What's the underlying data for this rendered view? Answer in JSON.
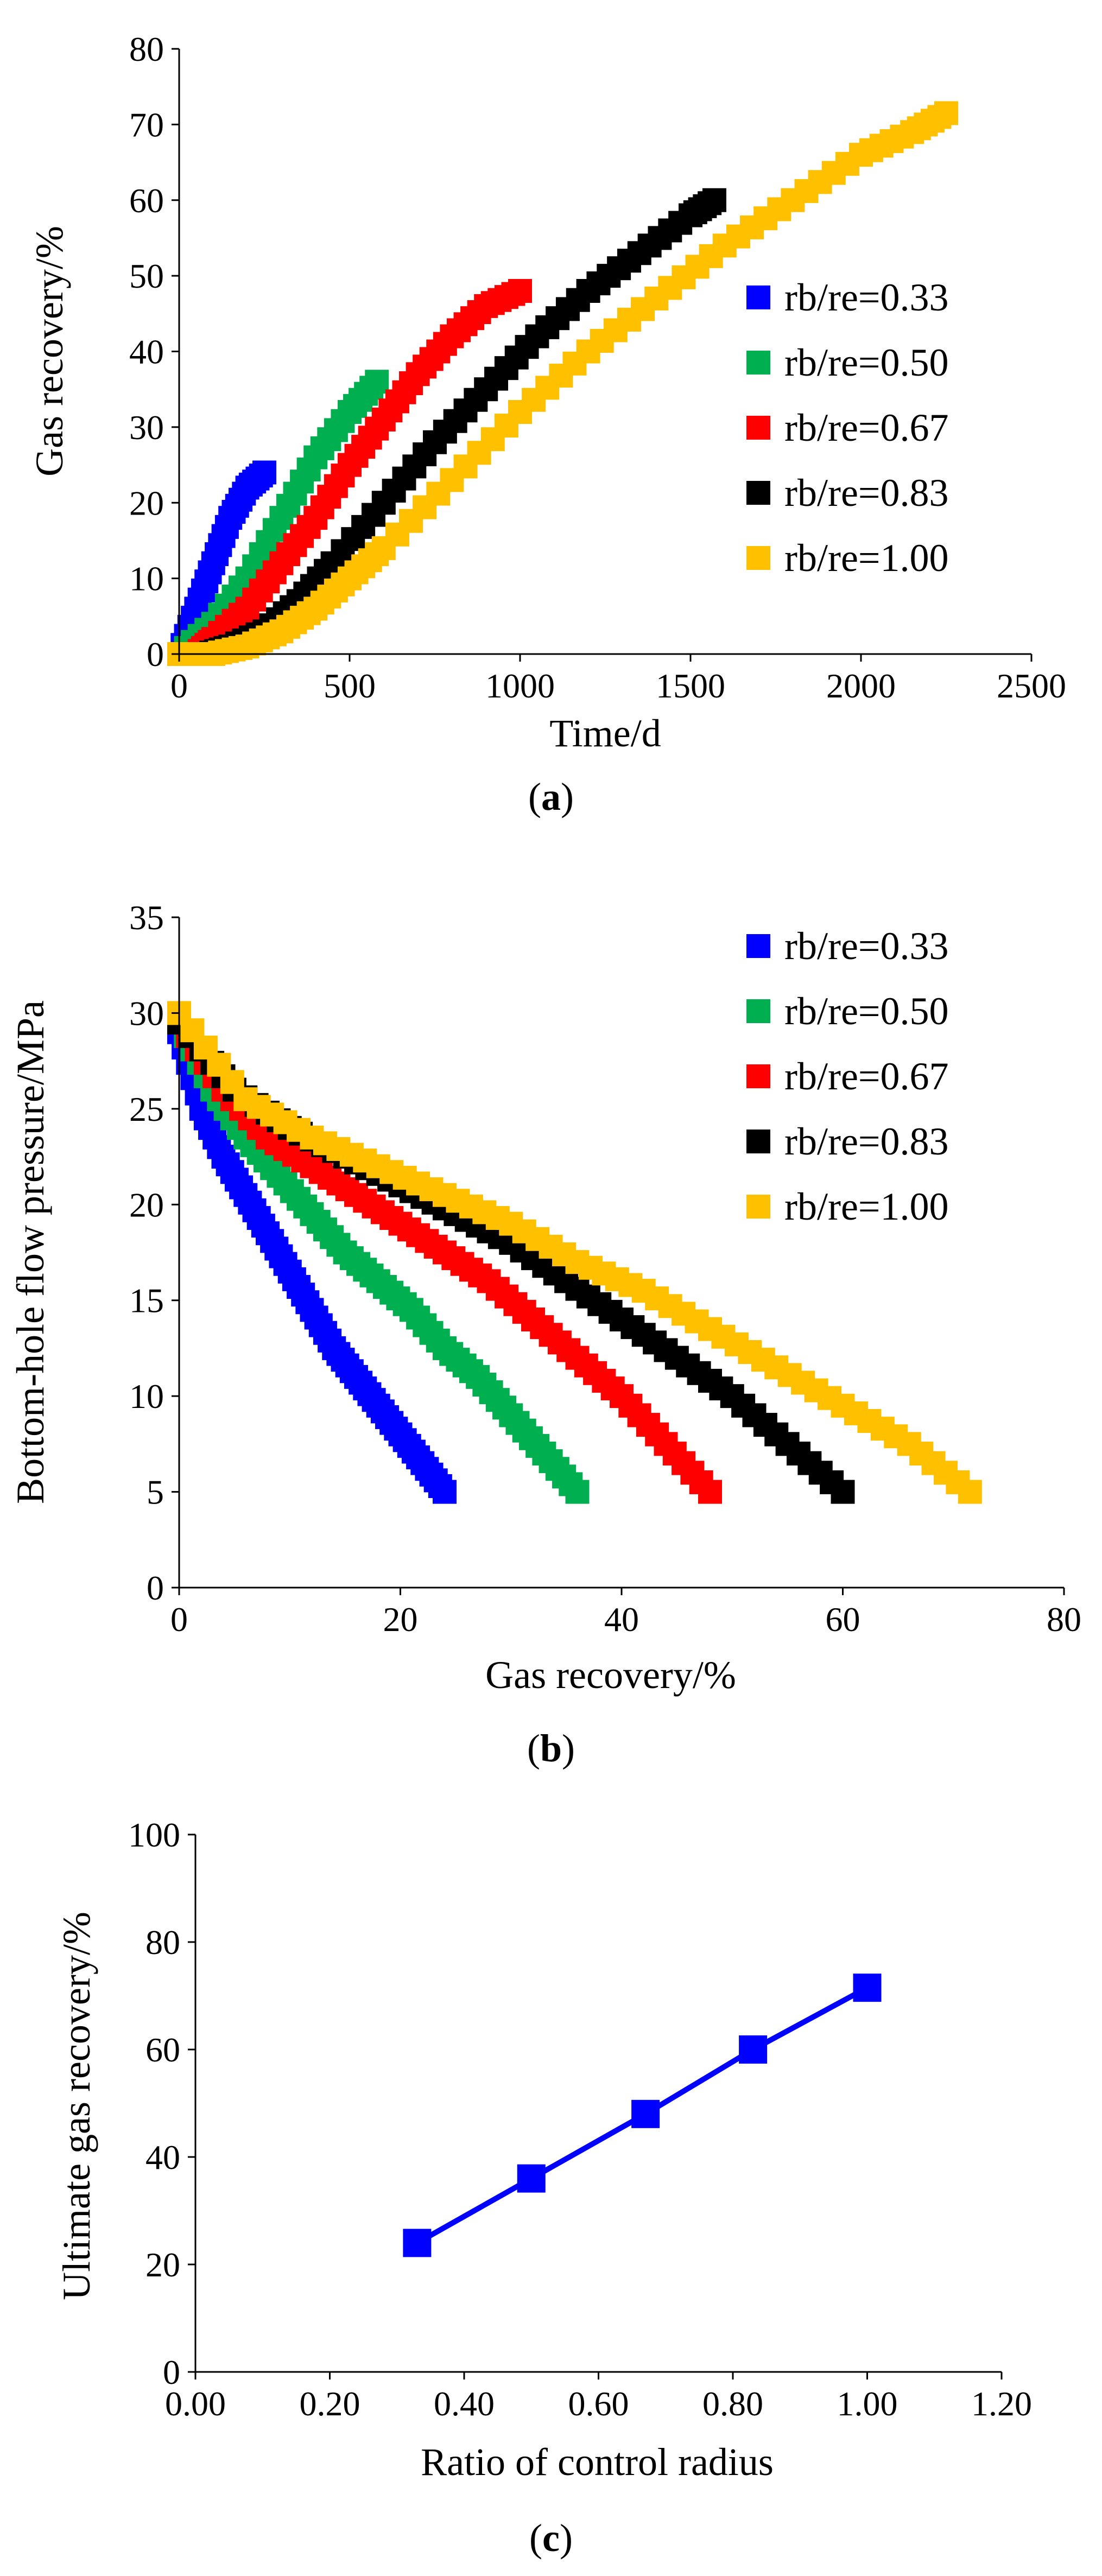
{
  "chart_data": [
    {
      "id": "a",
      "type": "scatter",
      "caption": "(a)",
      "caption_parts": [
        "(",
        "a",
        ")"
      ],
      "xlabel": "Time/d",
      "ylabel": "Gas recovery/%",
      "xlim": [
        0,
        2500
      ],
      "ylim": [
        0,
        80
      ],
      "xticks": [
        0,
        500,
        1000,
        1500,
        2000,
        2500
      ],
      "yticks": [
        0,
        10,
        20,
        30,
        40,
        50,
        60,
        70,
        80
      ],
      "legend_position": "right",
      "series": [
        {
          "name": "rb/re=0.33",
          "color": "#0000FF",
          "x": [
            0,
            50,
            100,
            150,
            200,
            250
          ],
          "y": [
            0,
            6,
            12,
            18,
            22,
            24
          ]
        },
        {
          "name": "rb/re=0.50",
          "color": "#00B050",
          "x": [
            0,
            100,
            200,
            300,
            400,
            500,
            580
          ],
          "y": [
            0,
            4,
            10,
            18,
            26,
            32,
            36
          ]
        },
        {
          "name": "rb/re=0.67",
          "color": "#FF0000",
          "x": [
            50,
            100,
            200,
            300,
            400,
            500,
            600,
            700,
            800,
            900,
            1000
          ],
          "y": [
            0,
            2,
            6,
            12,
            18,
            25,
            31,
            37,
            42,
            46,
            48
          ]
        },
        {
          "name": "rb/re=0.83",
          "color": "#000000",
          "x": [
            80,
            150,
            250,
            350,
            450,
            600,
            750,
            900,
            1050,
            1200,
            1350,
            1500,
            1570
          ],
          "y": [
            0,
            1,
            3,
            7,
            12,
            20,
            28,
            35,
            42,
            48,
            53,
            58,
            60
          ]
        },
        {
          "name": "rb/re=1.00",
          "color": "#FFC000",
          "x": [
            0,
            100,
            200,
            300,
            400,
            500,
            600,
            800,
            1000,
            1200,
            1400,
            1600,
            1800,
            2000,
            2150,
            2250
          ],
          "y": [
            0,
            0,
            1,
            3,
            6,
            10,
            14,
            23,
            32,
            40,
            47,
            54,
            60,
            66,
            69,
            71.5
          ]
        }
      ]
    },
    {
      "id": "b",
      "type": "scatter",
      "caption": "(b)",
      "caption_parts": [
        "(",
        "b",
        ")"
      ],
      "xlabel": "Gas recovery/%",
      "ylabel": "Bottom-hole flow pressure/MPa",
      "xlim": [
        0,
        80
      ],
      "ylim": [
        0,
        35
      ],
      "xticks": [
        0,
        20,
        40,
        60,
        80
      ],
      "yticks": [
        0,
        5,
        10,
        15,
        20,
        25,
        30,
        35
      ],
      "legend_position": "top-right",
      "series": [
        {
          "name": "rb/re=0.33",
          "color": "#0000FF",
          "x": [
            0,
            2,
            4,
            6,
            8,
            10,
            12,
            14,
            16,
            18,
            20,
            22,
            24
          ],
          "y": [
            29,
            25,
            22.5,
            20.5,
            18.5,
            16.5,
            14.5,
            12.5,
            11,
            9.5,
            8,
            6.5,
            5
          ]
        },
        {
          "name": "rb/re=0.50",
          "color": "#00B050",
          "x": [
            0,
            3,
            6,
            9,
            12,
            15,
            18,
            21,
            24,
            27,
            30,
            33,
            36
          ],
          "y": [
            29.5,
            26,
            23.5,
            21.5,
            19.5,
            17.5,
            16,
            14.5,
            12.5,
            11,
            9,
            7,
            5
          ]
        },
        {
          "name": "rb/re=0.67",
          "color": "#FF0000",
          "x": [
            0,
            4,
            8,
            12,
            16,
            20,
            24,
            28,
            32,
            36,
            40,
            44,
            48
          ],
          "y": [
            29.5,
            26,
            23.5,
            22,
            20.5,
            19,
            17.5,
            16,
            14,
            12,
            10,
            7.5,
            5
          ]
        },
        {
          "name": "rb/re=0.83",
          "color": "#000000",
          "x": [
            0,
            5,
            10,
            15,
            20,
            25,
            30,
            35,
            40,
            45,
            50,
            55,
            60
          ],
          "y": [
            29.5,
            26,
            24,
            22.5,
            21,
            19.5,
            18,
            16,
            14,
            12,
            10,
            7.5,
            5
          ]
        },
        {
          "name": "rb/re=1.00",
          "color": "#FFC000",
          "x": [
            0,
            6,
            12,
            18,
            24,
            30,
            36,
            42,
            48,
            54,
            60,
            66,
            71.5
          ],
          "y": [
            30,
            25.5,
            23.5,
            22,
            20.5,
            19,
            17,
            15.5,
            13.5,
            11.5,
            9.5,
            7.5,
            5
          ]
        }
      ]
    },
    {
      "id": "c",
      "type": "line",
      "caption": "(c)",
      "caption_parts": [
        "(",
        "c",
        ")"
      ],
      "xlabel": "Ratio of control radius",
      "ylabel": "Ultimate gas recovery/%",
      "xlim": [
        0,
        1.2
      ],
      "ylim": [
        0,
        100
      ],
      "xticks": [
        "0.00",
        "0.20",
        "0.40",
        "0.60",
        "0.80",
        "1.00",
        "1.20"
      ],
      "yticks": [
        0,
        20,
        40,
        60,
        80,
        100
      ],
      "series": [
        {
          "name": "Ultimate gas recovery",
          "color": "#0000FF",
          "x": [
            0.33,
            0.5,
            0.67,
            0.83,
            1.0
          ],
          "y": [
            24,
            36,
            48,
            60,
            71.5
          ]
        }
      ]
    }
  ]
}
